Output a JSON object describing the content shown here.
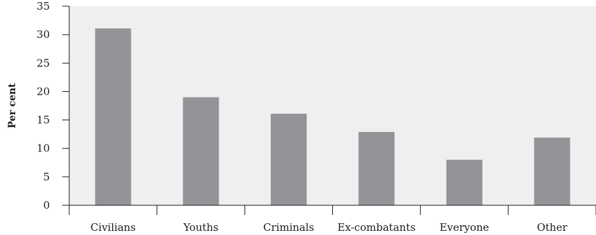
{
  "chart_data": {
    "type": "bar",
    "categories": [
      "Civilians",
      "Youths",
      "Criminals",
      "Ex-combatants",
      "Everyone",
      "Other"
    ],
    "values": [
      31.1,
      19.0,
      16.1,
      12.9,
      8.0,
      11.9
    ],
    "title": "",
    "xlabel": "",
    "ylabel": "Per cent",
    "ylim": [
      0,
      35
    ],
    "yticks": [
      0,
      5,
      10,
      15,
      20,
      25,
      30,
      35
    ],
    "grid": false,
    "legend": "none",
    "colors": {
      "bar": "#939497",
      "plot_bg": "#efefef",
      "axis": "#1a1a1a"
    }
  }
}
